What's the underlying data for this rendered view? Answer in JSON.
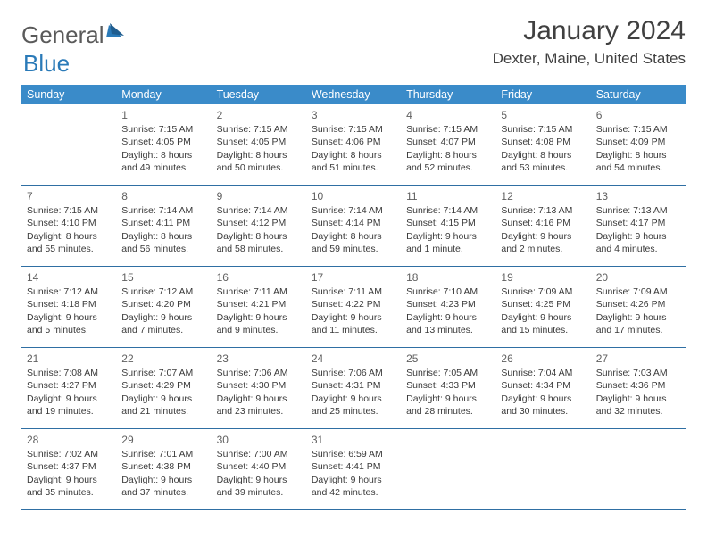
{
  "brand": {
    "name_gray": "General",
    "name_blue": "Blue"
  },
  "title": "January 2024",
  "location": "Dexter, Maine, United States",
  "colors": {
    "header_bg": "#3a8bc9",
    "header_text": "#ffffff",
    "row_border": "#2f6fa3",
    "logo_gray": "#5a5a5a",
    "logo_blue": "#2a7ab8",
    "body_text": "#3a3a3a"
  },
  "day_headers": [
    "Sunday",
    "Monday",
    "Tuesday",
    "Wednesday",
    "Thursday",
    "Friday",
    "Saturday"
  ],
  "weeks": [
    [
      null,
      {
        "n": "1",
        "sr": "7:15 AM",
        "ss": "4:05 PM",
        "dl": "8 hours and 49 minutes."
      },
      {
        "n": "2",
        "sr": "7:15 AM",
        "ss": "4:05 PM",
        "dl": "8 hours and 50 minutes."
      },
      {
        "n": "3",
        "sr": "7:15 AM",
        "ss": "4:06 PM",
        "dl": "8 hours and 51 minutes."
      },
      {
        "n": "4",
        "sr": "7:15 AM",
        "ss": "4:07 PM",
        "dl": "8 hours and 52 minutes."
      },
      {
        "n": "5",
        "sr": "7:15 AM",
        "ss": "4:08 PM",
        "dl": "8 hours and 53 minutes."
      },
      {
        "n": "6",
        "sr": "7:15 AM",
        "ss": "4:09 PM",
        "dl": "8 hours and 54 minutes."
      }
    ],
    [
      {
        "n": "7",
        "sr": "7:15 AM",
        "ss": "4:10 PM",
        "dl": "8 hours and 55 minutes."
      },
      {
        "n": "8",
        "sr": "7:14 AM",
        "ss": "4:11 PM",
        "dl": "8 hours and 56 minutes."
      },
      {
        "n": "9",
        "sr": "7:14 AM",
        "ss": "4:12 PM",
        "dl": "8 hours and 58 minutes."
      },
      {
        "n": "10",
        "sr": "7:14 AM",
        "ss": "4:14 PM",
        "dl": "8 hours and 59 minutes."
      },
      {
        "n": "11",
        "sr": "7:14 AM",
        "ss": "4:15 PM",
        "dl": "9 hours and 1 minute."
      },
      {
        "n": "12",
        "sr": "7:13 AM",
        "ss": "4:16 PM",
        "dl": "9 hours and 2 minutes."
      },
      {
        "n": "13",
        "sr": "7:13 AM",
        "ss": "4:17 PM",
        "dl": "9 hours and 4 minutes."
      }
    ],
    [
      {
        "n": "14",
        "sr": "7:12 AM",
        "ss": "4:18 PM",
        "dl": "9 hours and 5 minutes."
      },
      {
        "n": "15",
        "sr": "7:12 AM",
        "ss": "4:20 PM",
        "dl": "9 hours and 7 minutes."
      },
      {
        "n": "16",
        "sr": "7:11 AM",
        "ss": "4:21 PM",
        "dl": "9 hours and 9 minutes."
      },
      {
        "n": "17",
        "sr": "7:11 AM",
        "ss": "4:22 PM",
        "dl": "9 hours and 11 minutes."
      },
      {
        "n": "18",
        "sr": "7:10 AM",
        "ss": "4:23 PM",
        "dl": "9 hours and 13 minutes."
      },
      {
        "n": "19",
        "sr": "7:09 AM",
        "ss": "4:25 PM",
        "dl": "9 hours and 15 minutes."
      },
      {
        "n": "20",
        "sr": "7:09 AM",
        "ss": "4:26 PM",
        "dl": "9 hours and 17 minutes."
      }
    ],
    [
      {
        "n": "21",
        "sr": "7:08 AM",
        "ss": "4:27 PM",
        "dl": "9 hours and 19 minutes."
      },
      {
        "n": "22",
        "sr": "7:07 AM",
        "ss": "4:29 PM",
        "dl": "9 hours and 21 minutes."
      },
      {
        "n": "23",
        "sr": "7:06 AM",
        "ss": "4:30 PM",
        "dl": "9 hours and 23 minutes."
      },
      {
        "n": "24",
        "sr": "7:06 AM",
        "ss": "4:31 PM",
        "dl": "9 hours and 25 minutes."
      },
      {
        "n": "25",
        "sr": "7:05 AM",
        "ss": "4:33 PM",
        "dl": "9 hours and 28 minutes."
      },
      {
        "n": "26",
        "sr": "7:04 AM",
        "ss": "4:34 PM",
        "dl": "9 hours and 30 minutes."
      },
      {
        "n": "27",
        "sr": "7:03 AM",
        "ss": "4:36 PM",
        "dl": "9 hours and 32 minutes."
      }
    ],
    [
      {
        "n": "28",
        "sr": "7:02 AM",
        "ss": "4:37 PM",
        "dl": "9 hours and 35 minutes."
      },
      {
        "n": "29",
        "sr": "7:01 AM",
        "ss": "4:38 PM",
        "dl": "9 hours and 37 minutes."
      },
      {
        "n": "30",
        "sr": "7:00 AM",
        "ss": "4:40 PM",
        "dl": "9 hours and 39 minutes."
      },
      {
        "n": "31",
        "sr": "6:59 AM",
        "ss": "4:41 PM",
        "dl": "9 hours and 42 minutes."
      },
      null,
      null,
      null
    ]
  ],
  "labels": {
    "sunrise": "Sunrise:",
    "sunset": "Sunset:",
    "daylight": "Daylight:"
  }
}
